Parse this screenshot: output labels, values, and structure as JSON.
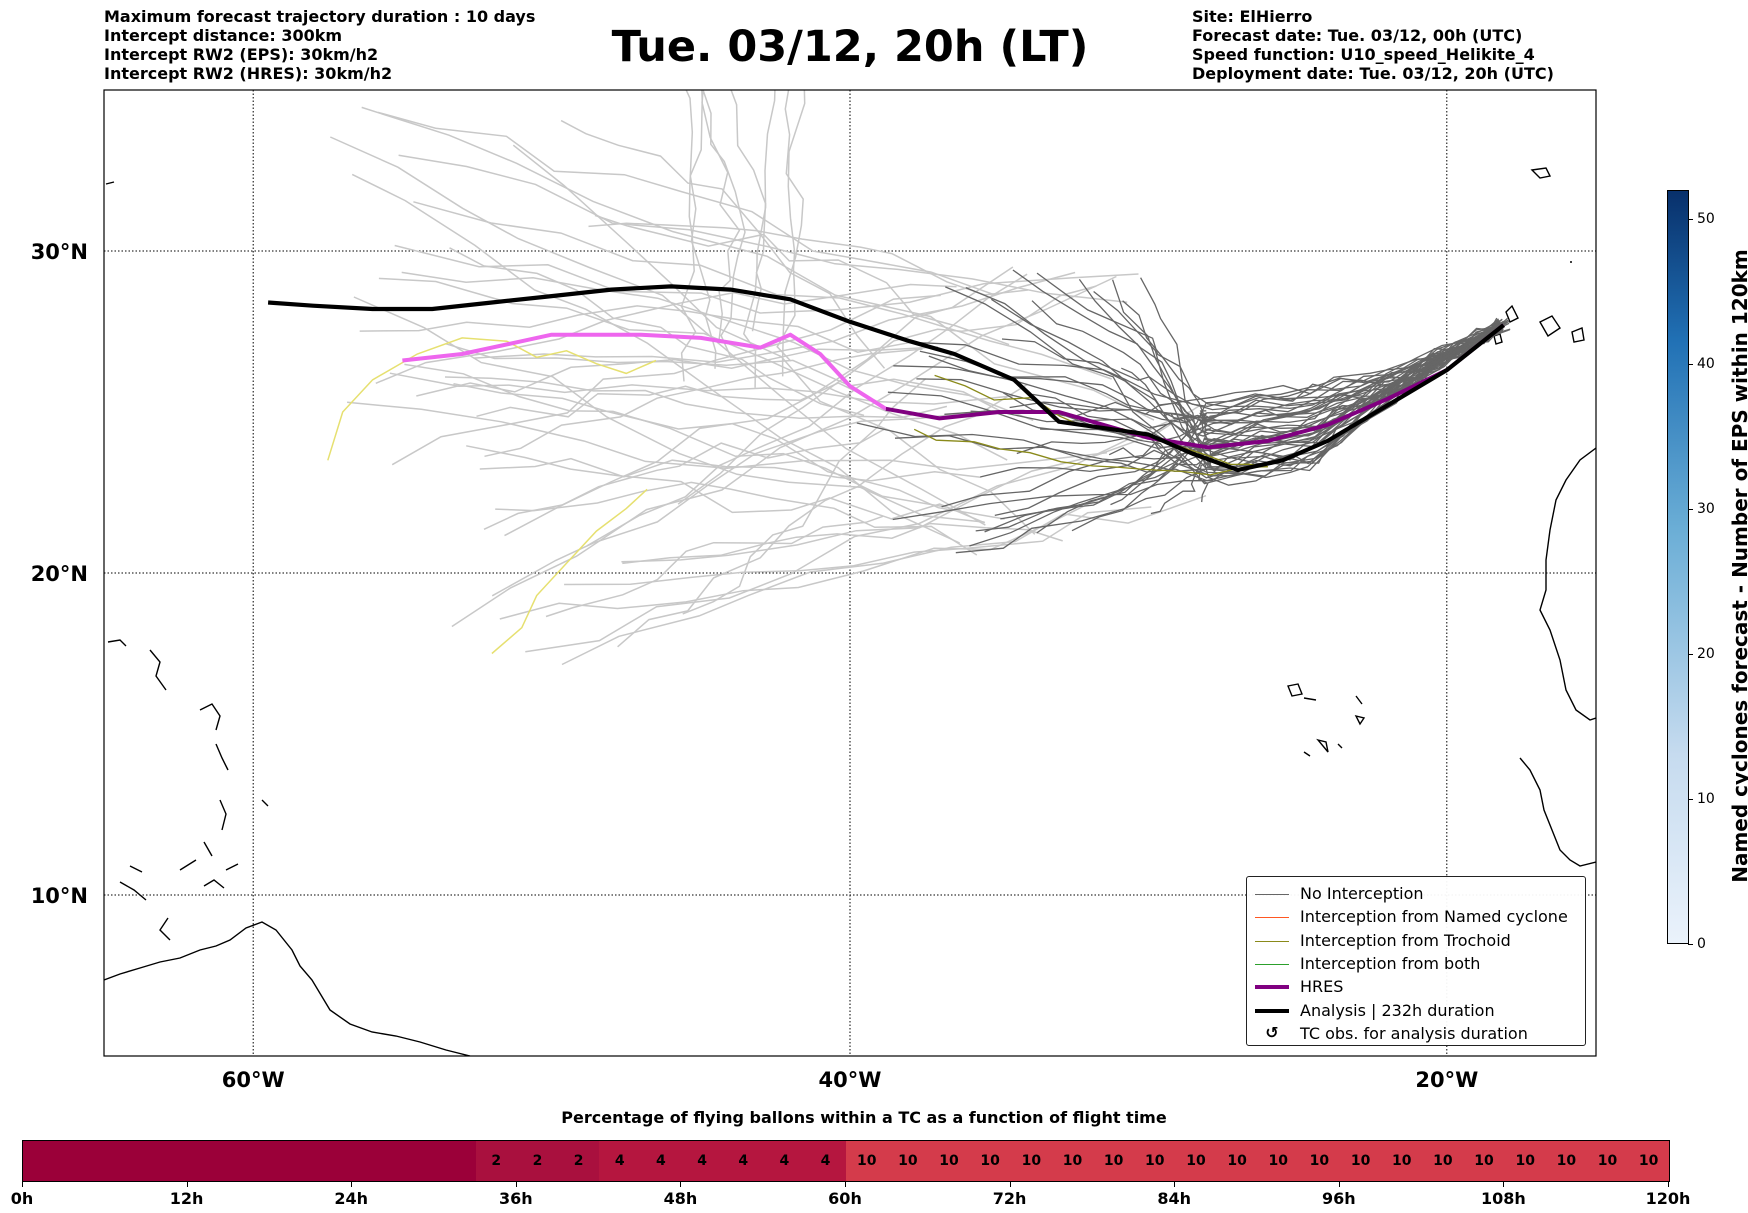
{
  "header": {
    "left_lines": [
      "Maximum forecast trajectory duration : 10 days",
      "Intercept distance: 300km",
      "Intercept RW2 (EPS):  30km/h2",
      "Intercept RW2 (HRES): 30km/h2"
    ],
    "title": "Tue. 03/12, 20h (LT)",
    "right_lines": [
      "Site: ElHierro",
      "Forecast date: Tue. 03/12, 00h (UTC)",
      "Speed function: U10_speed_Helikite_4",
      "Deployment date: Tue. 03/12, 20h (UTC)"
    ]
  },
  "map": {
    "lon_range": [
      -65,
      -15
    ],
    "lat_range": [
      5,
      35
    ],
    "gridlines": true,
    "lat_ticks": [
      {
        "value": 30,
        "label": "30°N"
      },
      {
        "value": 20,
        "label": "20°N"
      },
      {
        "value": 10,
        "label": "10°N"
      }
    ],
    "lon_ticks": [
      {
        "value": -60,
        "label": "60°W"
      },
      {
        "value": -40,
        "label": "40°W"
      },
      {
        "value": -20,
        "label": "20°W"
      }
    ],
    "colors": {
      "no_interception": "#666666",
      "named_cyclone": "#ff5722",
      "trochoid": "#8a8a1a",
      "both": "#2ca02c",
      "hres": "#800080",
      "hres_continuation": "#ee66ee",
      "analysis": "#000000",
      "faded_eps": "#c8c8c8",
      "faded_trochoid": "#e6e070"
    },
    "trajectories": {
      "analysis": [
        [
          -18.1,
          27.7
        ],
        [
          -20,
          26.3
        ],
        [
          -22,
          25.2
        ],
        [
          -24,
          24.1
        ],
        [
          -25.5,
          23.5
        ],
        [
          -27,
          23.2
        ],
        [
          -28.5,
          23.7
        ],
        [
          -30,
          24.3
        ],
        [
          -31.5,
          24.5
        ],
        [
          -33,
          24.7
        ],
        [
          -34.5,
          26
        ],
        [
          -36.5,
          26.8
        ],
        [
          -38,
          27.2
        ],
        [
          -40,
          27.8
        ],
        [
          -42,
          28.5
        ],
        [
          -44,
          28.8
        ],
        [
          -46,
          28.9
        ],
        [
          -48,
          28.8
        ],
        [
          -50,
          28.6
        ],
        [
          -52,
          28.4
        ],
        [
          -54,
          28.2
        ],
        [
          -56,
          28.2
        ],
        [
          -58,
          28.3
        ],
        [
          -59.5,
          28.4
        ]
      ],
      "hres": [
        [
          -18.1,
          27.7
        ],
        [
          -20,
          26.3
        ],
        [
          -22,
          25.4
        ],
        [
          -24,
          24.6
        ],
        [
          -26,
          24.1
        ],
        [
          -28,
          23.9
        ],
        [
          -30,
          24.2
        ],
        [
          -31.5,
          24.6
        ],
        [
          -33,
          25
        ],
        [
          -35,
          25
        ],
        [
          -37,
          24.8
        ],
        [
          -38.8,
          25.1
        ]
      ],
      "hres_faded": [
        [
          -38.8,
          25.1
        ],
        [
          -40,
          25.8
        ],
        [
          -41,
          26.8
        ],
        [
          -42,
          27.4
        ],
        [
          -43,
          27
        ],
        [
          -45,
          27.3
        ],
        [
          -47,
          27.4
        ],
        [
          -48,
          27.4
        ],
        [
          -50,
          27.4
        ],
        [
          -51,
          27.2
        ],
        [
          -53,
          26.8
        ],
        [
          -55,
          26.6
        ]
      ],
      "trochoid_faded": [
        [
          [
            -57.5,
            23.5
          ],
          [
            -57,
            25
          ],
          [
            -56,
            26
          ],
          [
            -54.5,
            26.8
          ],
          [
            -53,
            27.3
          ],
          [
            -51.5,
            27.2
          ],
          [
            -50.5,
            26.7
          ],
          [
            -49.5,
            26.9
          ],
          [
            -48.5,
            26.5
          ],
          [
            -47.5,
            26.2
          ],
          [
            -46.5,
            26.6
          ]
        ],
        [
          [
            -52,
            17.5
          ],
          [
            -51,
            18.3
          ],
          [
            -50.5,
            19.3
          ],
          [
            -49.5,
            20.3
          ],
          [
            -48.5,
            21.3
          ],
          [
            -47.5,
            22
          ],
          [
            -46.8,
            22.6
          ]
        ]
      ],
      "trochoid": [
        [
          [
            -37,
            26
          ],
          [
            -34,
            25.3
          ],
          [
            -31,
            24.4
          ],
          [
            -28,
            23.6
          ],
          [
            -26,
            23.3
          ]
        ],
        [
          [
            -38,
            24.3
          ],
          [
            -35,
            24
          ],
          [
            -32,
            23.4
          ],
          [
            -29,
            23
          ],
          [
            -26,
            23.3
          ]
        ]
      ],
      "no_interception_count": 46,
      "faded_eps_count": 46
    }
  },
  "legend": [
    {
      "key": "no_interception",
      "label": "No Interception",
      "style": "thin"
    },
    {
      "key": "named_cyclone",
      "label": "Interception from Named cyclone",
      "style": "thin"
    },
    {
      "key": "trochoid",
      "label": "Interception from Trochoid",
      "style": "thin"
    },
    {
      "key": "both",
      "label": "Interception from both",
      "style": "thin"
    },
    {
      "key": "hres",
      "label": "HRES",
      "style": "thick"
    },
    {
      "key": "analysis",
      "label": "Analysis | 232h duration",
      "style": "thick"
    },
    {
      "key": "tc_obs",
      "label": "TC obs. for analysis duration",
      "style": "marker",
      "marker": "↺"
    }
  ],
  "colorbar": {
    "label": "Named cyclones forecast - Number of EPS within 120km",
    "min": 0,
    "max": 52,
    "ticks": [
      0,
      10,
      20,
      30,
      40,
      50
    ]
  },
  "bottom_chart": {
    "title": "Percentage of flying ballons within a TC as a function of flight time",
    "values": [
      null,
      null,
      null,
      null,
      null,
      null,
      null,
      null,
      null,
      null,
      null,
      2,
      2,
      2,
      4,
      4,
      4,
      4,
      4,
      4,
      10,
      10,
      10,
      10,
      10,
      10,
      10,
      10,
      10,
      10,
      10,
      10,
      10,
      10,
      10,
      10,
      10,
      10,
      10,
      10
    ],
    "colors": {
      "none": "#9b0039",
      "2": "#a9103e",
      "4": "#b5163f",
      "10": "#d43b4b"
    },
    "time_labels": [
      "0h",
      "12h",
      "24h",
      "36h",
      "48h",
      "60h",
      "72h",
      "84h",
      "96h",
      "108h",
      "120h"
    ]
  }
}
